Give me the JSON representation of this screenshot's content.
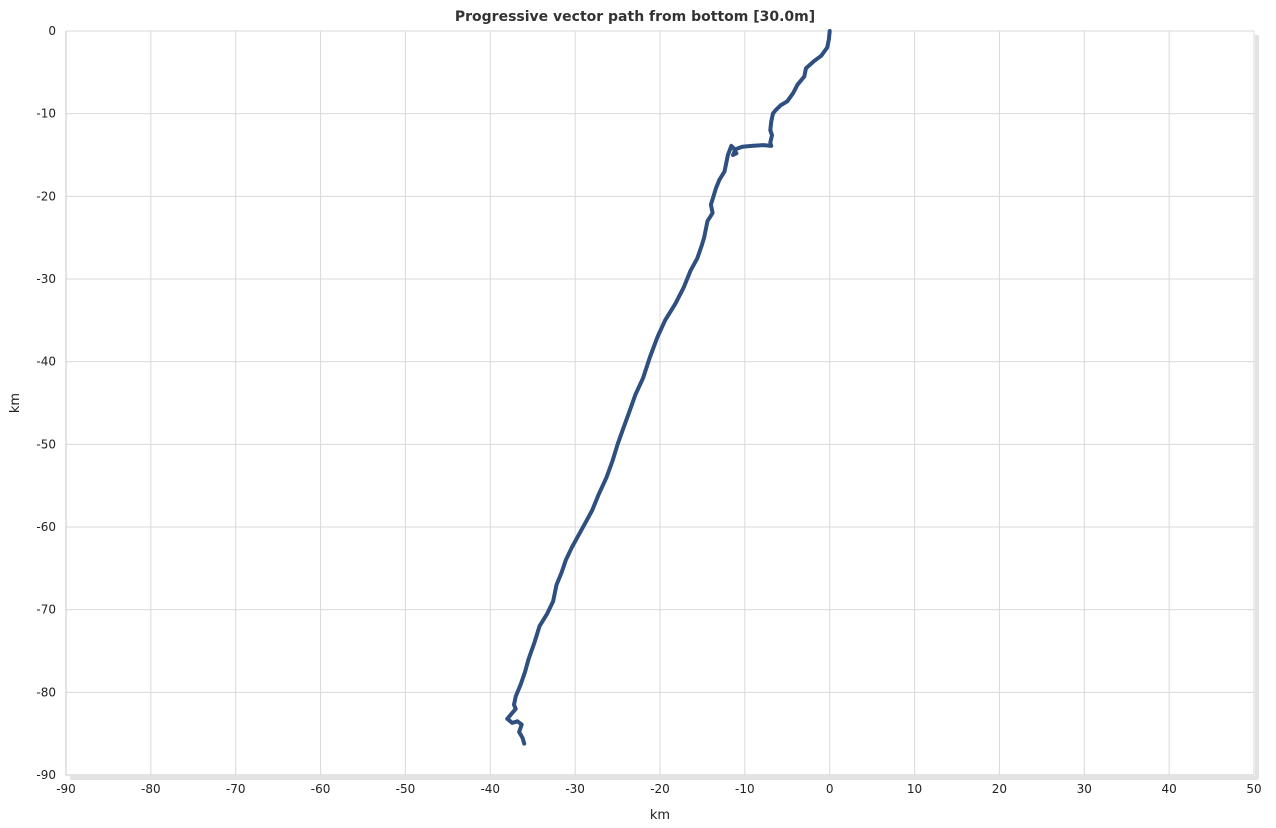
{
  "chart_data": {
    "type": "line",
    "title": "Progressive vector path from bottom [30.0m]",
    "xlabel": "km",
    "ylabel": "km",
    "xlim": [
      -90,
      50
    ],
    "ylim": [
      -90,
      0
    ],
    "x_ticks": [
      "-90",
      "-80",
      "-70",
      "-60",
      "-50",
      "-40",
      "-30",
      "-20",
      "-10",
      "0",
      "10",
      "20",
      "30",
      "40",
      "50"
    ],
    "y_ticks": [
      "0",
      "-10",
      "-20",
      "-30",
      "-40",
      "-50",
      "-60",
      "-70",
      "-80",
      "-90"
    ],
    "grid": true,
    "legend": "none",
    "series": [
      {
        "color": "#2e4f7f",
        "x": [
          0.0,
          -0.1,
          -0.3,
          -1.0,
          -1.8,
          -2.8,
          -3.0,
          -3.8,
          -4.3,
          -5.0,
          -5.8,
          -6.4,
          -6.7,
          -6.9,
          -7.0,
          -6.8,
          -7.0,
          -6.9,
          -7.8,
          -9.2,
          -10.3,
          -11.1,
          -11.4,
          -11.0,
          -11.3,
          -11.6,
          -12.0,
          -12.2,
          -12.4,
          -13.0,
          -13.4,
          -13.7,
          -14.0,
          -13.8,
          -14.1,
          -14.4,
          -14.6,
          -14.8,
          -15.1,
          -15.6,
          -16.4,
          -17.2,
          -18.2,
          -19.4,
          -20.3,
          -21.2,
          -22.0,
          -22.9,
          -23.6,
          -24.3,
          -25.0,
          -25.6,
          -26.3,
          -27.2,
          -28.0,
          -28.8,
          -29.6,
          -30.4,
          -31.1,
          -31.6,
          -32.2,
          -32.6,
          -33.3,
          -34.2,
          -34.8,
          -35.5,
          -35.9,
          -36.4,
          -37.0,
          -37.2,
          -37.0,
          -37.5,
          -38.0,
          -37.4,
          -36.8,
          -36.3,
          -36.6,
          -36.2,
          -36.0
        ],
        "y": [
          0.0,
          -1.0,
          -2.0,
          -3.0,
          -3.6,
          -4.5,
          -5.5,
          -6.5,
          -7.5,
          -8.5,
          -9.0,
          -9.6,
          -10.0,
          -11.0,
          -12.0,
          -12.6,
          -13.5,
          -13.9,
          -13.8,
          -13.9,
          -14.0,
          -14.3,
          -15.0,
          -14.8,
          -14.2,
          -13.9,
          -15.0,
          -16.0,
          -17.0,
          -18.0,
          -19.0,
          -20.0,
          -21.0,
          -22.0,
          -22.5,
          -23.0,
          -24.0,
          -25.0,
          -26.0,
          -27.5,
          -29.0,
          -31.0,
          -33.0,
          -35.0,
          -37.0,
          -39.5,
          -42.0,
          -44.0,
          -46.0,
          -48.0,
          -50.0,
          -52.0,
          -54.0,
          -56.0,
          -58.0,
          -59.5,
          -61.0,
          -62.5,
          -64.0,
          -65.5,
          -67.0,
          -69.0,
          -70.5,
          -72.0,
          -74.0,
          -76.0,
          -77.5,
          -79.0,
          -80.5,
          -81.5,
          -82.0,
          -82.6,
          -83.2,
          -83.7,
          -83.5,
          -83.9,
          -84.8,
          -85.5,
          -86.2
        ]
      }
    ]
  }
}
